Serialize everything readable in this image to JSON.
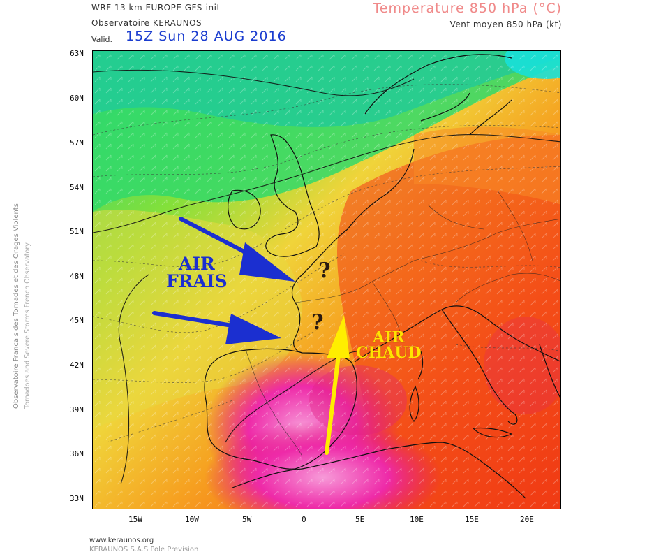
{
  "header": {
    "model": "WRF 13 km EUROPE  GFS-init",
    "observatory": "Observatoire KERAUNOS",
    "valid_label": "Valid.",
    "valid_time": "15Z Sun 28 AUG 2016",
    "parameter": "Temperature 850 hPa (°C)",
    "wind": "Vent moyen 850 hPa (kt)"
  },
  "axes": {
    "lat": [
      "63N",
      "60N",
      "57N",
      "54N",
      "51N",
      "48N",
      "45N",
      "42N",
      "39N",
      "36N",
      "33N"
    ],
    "lon": [
      "15W",
      "10W",
      "5W",
      "0",
      "5E",
      "10E",
      "15E",
      "20E"
    ]
  },
  "annotations": {
    "cold": [
      "AIR",
      "FRAIS"
    ],
    "warm": [
      "AIR",
      "CHAUD"
    ],
    "question": "?"
  },
  "side_text": {
    "line1": "Observatoire Francais des Tornades et des Orages Violents",
    "line2": "Tornadoes and Severe Storms French Observatory"
  },
  "footer": {
    "url": "www.keraunos.org",
    "company": "KERAUNOS S.A.S Pole Prevision"
  },
  "colors": {
    "cold_arrow": "#1b2fd0",
    "warm_arrow": "#ffee00",
    "title_accent": "#f08a8a",
    "valid_accent": "#1a3ccf"
  }
}
